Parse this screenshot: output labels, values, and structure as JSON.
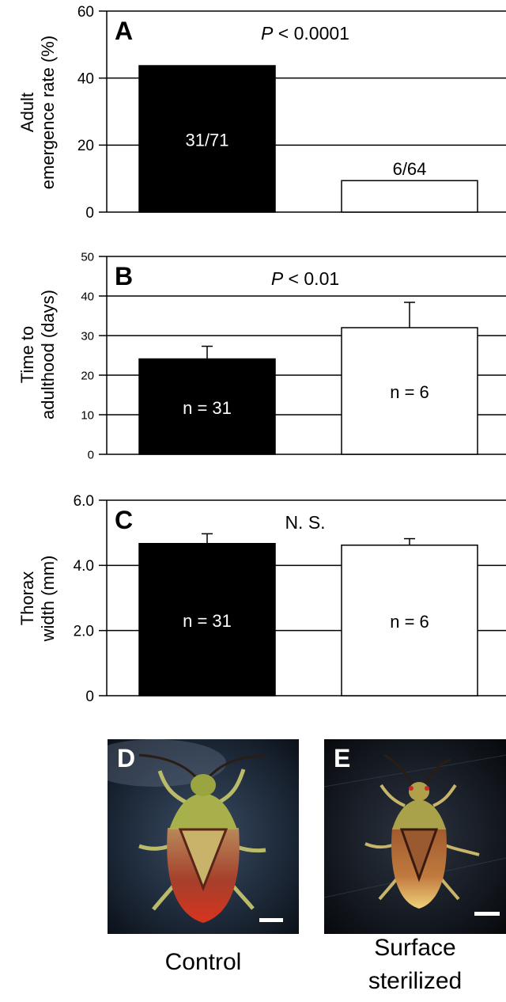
{
  "chart_data": [
    {
      "type": "bar",
      "panel_letter": "A",
      "ylabel_lines": [
        "Adult",
        "emergence rate (%)"
      ],
      "ylim": [
        0,
        60
      ],
      "yticks": [
        "0",
        "20",
        "40",
        "60"
      ],
      "grid": true,
      "stat_prefix": "P",
      "stat_suffix": " < 0.0001",
      "bars": [
        {
          "value": 43.7,
          "fill": "#000000",
          "label": "31/71",
          "label_pos": "inside"
        },
        {
          "value": 9.4,
          "fill": "#ffffff",
          "label": "6/64",
          "label_pos": "above"
        }
      ]
    },
    {
      "type": "bar",
      "panel_letter": "B",
      "ylabel_lines": [
        "Time to",
        "adulthood (days)"
      ],
      "ylim": [
        0,
        50
      ],
      "yticks": [
        "0",
        "10",
        "20",
        "30",
        "40",
        "50"
      ],
      "grid": true,
      "stat_prefix": "P",
      "stat_suffix": " < 0.01",
      "bars": [
        {
          "value": 24.1,
          "error": 3.2,
          "fill": "#000000",
          "label": "n = 31",
          "label_pos": "inside"
        },
        {
          "value": 32.0,
          "error": 6.4,
          "fill": "#ffffff",
          "label": "n = 6",
          "label_pos": "inside"
        }
      ]
    },
    {
      "type": "bar",
      "panel_letter": "C",
      "ylabel_lines": [
        "Thorax",
        "width (mm)"
      ],
      "ylim": [
        0,
        6
      ],
      "yticks": [
        "0",
        "2.0",
        "4.0",
        "6.0"
      ],
      "grid": true,
      "stat_prefix": "",
      "stat_suffix": "N. S.",
      "bars": [
        {
          "value": 4.67,
          "error": 0.3,
          "fill": "#000000",
          "label": "n = 31",
          "label_pos": "inside"
        },
        {
          "value": 4.62,
          "error": 0.2,
          "fill": "#ffffff",
          "label": "n = 6",
          "label_pos": "inside"
        }
      ]
    }
  ],
  "photos": {
    "d": {
      "letter": "D",
      "caption": "Control"
    },
    "e": {
      "letter": "E",
      "caption_line1": "Surface",
      "caption_line2": "sterilized"
    }
  }
}
